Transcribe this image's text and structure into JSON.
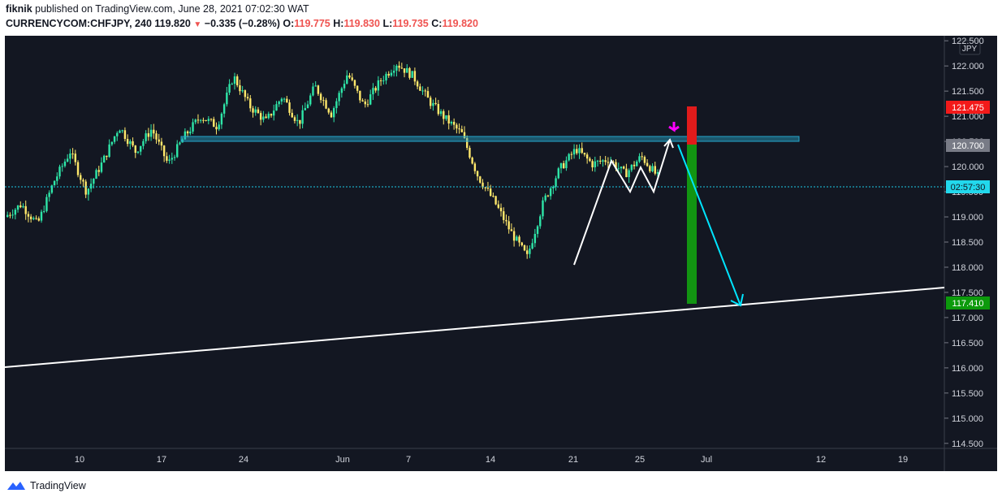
{
  "header": {
    "user": "fiknik",
    "published": "published on TradingView.com, June 28, 2021 07:02:30 WAT",
    "symbol": "CURRENCYCOM:CHFJPY, 240",
    "last": "119.820",
    "change": "−0.335 (−0.28%)",
    "o_label": "O:",
    "o": "119.775",
    "h_label": "H:",
    "h": "119.830",
    "l_label": "L:",
    "l": "119.735",
    "c_label": "C:",
    "c": "119.820"
  },
  "colors": {
    "background": "#131722",
    "up": "#2ee6a8",
    "down": "#ffe86b",
    "zone": "#26a6c9",
    "stop": "#ff1f1f",
    "target": "#1aa11a",
    "cyan_line": "#00e5ff",
    "arrow": "#ff00ff"
  },
  "chart_data": {
    "type": "candlestick",
    "currency_label": "JPY",
    "ylim": [
      114.4,
      122.6
    ],
    "y_ticks": [
      "122.500",
      "122.000",
      "121.500",
      "121.000",
      "120.500",
      "120.000",
      "119.500",
      "119.000",
      "118.500",
      "118.000",
      "117.500",
      "117.000",
      "116.500",
      "116.000",
      "115.500",
      "115.000",
      "114.500"
    ],
    "x_ticks": [
      "10",
      "17",
      "24",
      "Jun",
      "7",
      "14",
      "21",
      "25",
      "Jul",
      "12",
      "19"
    ],
    "price_labels": {
      "stop": "121.475",
      "entry": "120.700",
      "current": "119.820",
      "countdown": "02:57:30",
      "target": "117.410"
    },
    "series": [
      {
        "values": [
          119.0,
          119.25,
          118.85,
          119.7,
          120.3,
          119.5,
          120.1,
          120.8,
          120.3,
          120.75,
          120.05,
          120.6,
          121.0,
          120.8,
          121.8,
          121.2,
          120.9,
          121.4,
          120.85,
          121.6,
          121.05,
          121.85,
          121.2,
          121.7,
          122.05,
          121.8,
          121.3,
          120.95,
          120.65,
          119.8,
          119.3,
          118.7,
          118.2,
          119.3,
          119.95,
          120.35,
          120.05,
          120.15,
          119.85,
          120.2,
          119.8
        ]
      }
    ]
  }
}
